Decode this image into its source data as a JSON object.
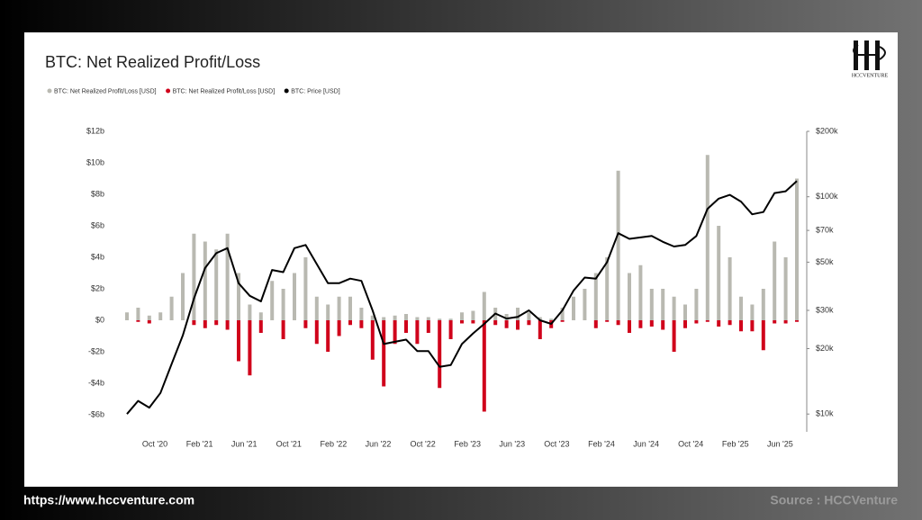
{
  "chart_data": {
    "type": "bar-line",
    "title": "BTC: Net Realized Profit/Loss",
    "categories": [
      null,
      null,
      null,
      "Oct '20",
      null,
      null,
      null,
      "Feb '21",
      null,
      null,
      null,
      "Jun '21",
      null,
      null,
      null,
      "Oct '21",
      null,
      null,
      null,
      "Feb '22",
      null,
      null,
      null,
      "Jun '22",
      null,
      null,
      null,
      "Oct '22",
      null,
      null,
      null,
      "Feb '23",
      null,
      null,
      null,
      "Jun '23",
      null,
      null,
      null,
      "Oct '23",
      null,
      null,
      null,
      "Feb '24",
      null,
      null,
      null,
      "Jun '24",
      null,
      null,
      null,
      "Oct '24",
      null,
      null,
      null,
      "Feb '25",
      null,
      null,
      null,
      "Jun '25",
      null
    ],
    "series": [
      {
        "name": "BTC: Net Realized Profit/Loss [USD]",
        "color": "#b9b9b1",
        "kind": "bar",
        "values": [
          0.5,
          0.8,
          0.3,
          0.5,
          1.5,
          3,
          5.5,
          5,
          4.5,
          5.5,
          3,
          1,
          0.5,
          2.5,
          2,
          3,
          4,
          1.5,
          1,
          1.5,
          1.5,
          0.8,
          0.3,
          0.2,
          0.3,
          0.4,
          0.2,
          0.2,
          0.1,
          0.1,
          0.5,
          0.6,
          1.8,
          0.8,
          0.4,
          0.8,
          0.5,
          0.2,
          0.1,
          0.8,
          1.5,
          2,
          3,
          4,
          9.5,
          3,
          3.5,
          2,
          2,
          1.5,
          1,
          2,
          10.5,
          6,
          4,
          1.5,
          1,
          2,
          5,
          4,
          9
        ]
      },
      {
        "name": "BTC: Net Realized Profit/Loss [USD]",
        "color": "#d0021b",
        "kind": "bar",
        "values": [
          0,
          -0.1,
          -0.2,
          0,
          0,
          0,
          -0.3,
          -0.5,
          -0.3,
          -0.6,
          -2.6,
          -3.5,
          -0.8,
          0,
          -1.2,
          0,
          -0.5,
          -1.5,
          -2,
          -1,
          -0.3,
          -0.5,
          -2.5,
          -4.2,
          -1.5,
          -0.8,
          -1.5,
          -0.8,
          -4.3,
          -1.2,
          -0.2,
          -0.2,
          -5.8,
          -0.3,
          -0.5,
          -0.6,
          -0.3,
          -1.2,
          -0.5,
          -0.1,
          0,
          0,
          -0.5,
          -0.1,
          -0.3,
          -0.8,
          -0.5,
          -0.4,
          -0.6,
          -2,
          -0.5,
          -0.2,
          -0.1,
          -0.4,
          -0.3,
          -0.7,
          -0.7,
          -1.9,
          -0.2,
          -0.2,
          -0.1
        ]
      },
      {
        "name": "BTC: Price [USD]",
        "color": "#000000",
        "kind": "line",
        "axis": "y2",
        "values": [
          10000,
          11500,
          10700,
          12500,
          17000,
          23000,
          34000,
          47000,
          55000,
          58000,
          40000,
          35000,
          33000,
          46000,
          45000,
          58000,
          60000,
          49000,
          40000,
          40000,
          42000,
          41000,
          30000,
          21000,
          21500,
          22000,
          19500,
          19500,
          16500,
          16800,
          21000,
          23500,
          26000,
          29000,
          27500,
          28000,
          30000,
          27000,
          26000,
          30000,
          37000,
          42500,
          42000,
          50000,
          68000,
          64000,
          65000,
          66000,
          62000,
          59000,
          60000,
          66000,
          88000,
          98000,
          102000,
          95000,
          83000,
          85000,
          104000,
          106000,
          118000
        ]
      }
    ],
    "ylim": [
      -7,
      12
    ],
    "yticks": [
      {
        "value": -6,
        "label": "-$6b"
      },
      {
        "value": -4,
        "label": "-$4b"
      },
      {
        "value": -2,
        "label": "-$2b"
      },
      {
        "value": 0,
        "label": "$0"
      },
      {
        "value": 2,
        "label": "$2b"
      },
      {
        "value": 4,
        "label": "$4b"
      },
      {
        "value": 6,
        "label": "$6b"
      },
      {
        "value": 8,
        "label": "$8b"
      },
      {
        "value": 10,
        "label": "$10b"
      },
      {
        "value": 12,
        "label": "$12b"
      }
    ],
    "y2lim": [
      8400,
      200000
    ],
    "y2log": true,
    "y2ticks": [
      {
        "value": 10000,
        "label": "$10k"
      },
      {
        "value": 20000,
        "label": "$20k"
      },
      {
        "value": 30000,
        "label": "$30k"
      },
      {
        "value": 50000,
        "label": "$50k"
      },
      {
        "value": 70000,
        "label": "$70k"
      },
      {
        "value": 100000,
        "label": "$100k"
      },
      {
        "value": 200000,
        "label": "$200k"
      }
    ],
    "grid": false,
    "legend": "top-left"
  },
  "logo": {
    "text": "HCCVENTURE"
  },
  "footer": {
    "url": "https://www.hccventure.com",
    "source": "Source : HCCVenture"
  }
}
